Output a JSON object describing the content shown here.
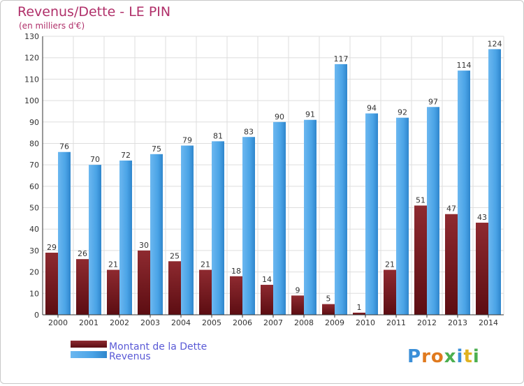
{
  "chart_data": {
    "type": "bar",
    "title": "Revenus/Dette - LE PIN",
    "subtitle": "(en milliers d'€)",
    "categories": [
      "2000",
      "2001",
      "2002",
      "2003",
      "2004",
      "2005",
      "2006",
      "2007",
      "2008",
      "2009",
      "2010",
      "2011",
      "2012",
      "2013",
      "2014"
    ],
    "series": [
      {
        "name": "Montant de la Dette",
        "color": "#7a1a1f",
        "values": [
          29,
          26,
          21,
          30,
          25,
          21,
          18,
          14,
          9,
          5,
          1,
          21,
          51,
          47,
          43
        ]
      },
      {
        "name": "Revenus",
        "color": "#4aa3e6",
        "values": [
          76,
          70,
          72,
          75,
          79,
          81,
          83,
          90,
          91,
          117,
          94,
          92,
          97,
          114,
          124
        ]
      }
    ],
    "ylim": [
      0,
      130
    ],
    "yticks": [
      0,
      10,
      20,
      30,
      40,
      50,
      60,
      70,
      80,
      90,
      100,
      110,
      120,
      130
    ],
    "grid": true,
    "legend": "bottom-left",
    "colors": {
      "title": "#b0306a",
      "legend_text": "#5a5ad6",
      "grid": "#dddddd",
      "axis": "#333333"
    }
  },
  "logo": {
    "text": "Proxiti"
  }
}
